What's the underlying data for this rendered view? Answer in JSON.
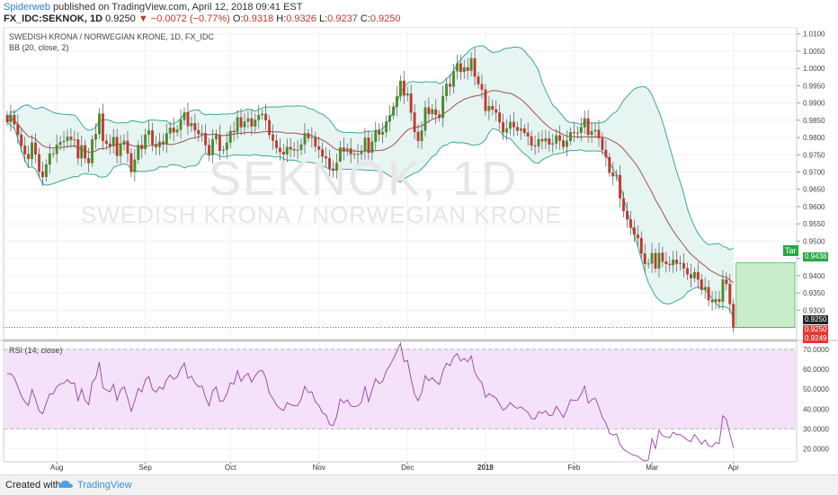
{
  "header": {
    "author": "Spiderweb",
    "published": "published on TradingView.com, April 12, 2018 09:41 EST",
    "symbol": "FX_IDC:SEKNOK, 1D",
    "last": "0.9250",
    "arrow": "▼",
    "change": "−0.0072 (−0.77%)",
    "o_label": "O:",
    "o": "0.9318",
    "h_label": "H:",
    "h": "0.9326",
    "l_label": "L:",
    "l": "0.9237",
    "c_label": "C:",
    "c": "0.9250"
  },
  "panes": {
    "main_title": "SWEDISH KRONA / NORWEGIAN KRONE, 1D, FX_IDC",
    "bb_title": "BB (20, close, 2)",
    "rsi_title": "RSI (14, close)"
  },
  "watermark": {
    "symbol": "SEKNOK, 1D",
    "name": "SWEDISH KRONA / NORWEGIAN KRONE"
  },
  "price_tags": {
    "target_label": "Tar",
    "target": "0.9438",
    "last_price": "0.9250",
    "bid": "0.9250",
    "ask": "0.9249"
  },
  "footer": {
    "created_with": "Created with",
    "brand": "TradingView"
  },
  "colors": {
    "up": "#4a8a2a",
    "down": "#c0392b",
    "bb_band": "#3aa89a",
    "bb_fill": "#e4f4f1",
    "bb_mid": "#a05050",
    "rsi_line": "#9b3fa0",
    "rsi_fill": "#f3e2fa",
    "target_green": "#27a844",
    "price_red": "#e53935"
  },
  "chart_data": [
    {
      "type": "candlestick",
      "title": "SWEDISH KRONA / NORWEGIAN KRONE, 1D, FX_IDC",
      "ylim": [
        0.9215,
        1.012
      ],
      "y_ticks": [
        "1.0100",
        "1.0050",
        "1.0000",
        "0.9950",
        "0.9900",
        "0.9850",
        "0.9800",
        "0.9750",
        "0.9700",
        "0.9650",
        "0.9600",
        "0.9550",
        "0.9500",
        "0.9450",
        "0.9400",
        "0.9350",
        "0.9300"
      ],
      "x_ticks": [
        "Aug",
        "Sep",
        "Oct",
        "Nov",
        "Dec",
        "2018",
        "Feb",
        "Mar",
        "Apr"
      ],
      "x_tick_index": [
        14,
        39,
        63,
        88,
        113,
        135,
        160,
        182,
        205
      ],
      "closes": [
        0.9845,
        0.9865,
        0.9838,
        0.9808,
        0.9776,
        0.9752,
        0.9738,
        0.9785,
        0.9751,
        0.9701,
        0.9686,
        0.9722,
        0.9753,
        0.9753,
        0.9779,
        0.9787,
        0.979,
        0.9802,
        0.9793,
        0.9794,
        0.974,
        0.9777,
        0.974,
        0.9726,
        0.9794,
        0.981,
        0.9869,
        0.979,
        0.9782,
        0.9775,
        0.9801,
        0.9747,
        0.978,
        0.979,
        0.9754,
        0.97,
        0.9736,
        0.9778,
        0.9767,
        0.9808,
        0.982,
        0.978,
        0.9772,
        0.9788,
        0.9781,
        0.9812,
        0.9828,
        0.9815,
        0.9823,
        0.9851,
        0.9872,
        0.9833,
        0.9841,
        0.9821,
        0.981,
        0.9812,
        0.9778,
        0.975,
        0.9795,
        0.9807,
        0.9762,
        0.9764,
        0.9785,
        0.9819,
        0.9815,
        0.9858,
        0.983,
        0.9846,
        0.9855,
        0.9832,
        0.9851,
        0.9865,
        0.9868,
        0.985,
        0.9808,
        0.9791,
        0.977,
        0.9758,
        0.9751,
        0.9772,
        0.9766,
        0.9763,
        0.9764,
        0.978,
        0.9812,
        0.9798,
        0.98,
        0.9774,
        0.9765,
        0.9745,
        0.974,
        0.971,
        0.9705,
        0.9726,
        0.9771,
        0.976,
        0.9768,
        0.9752,
        0.975,
        0.9752,
        0.976,
        0.9799,
        0.9756,
        0.9788,
        0.982,
        0.9809,
        0.9816,
        0.9846,
        0.9864,
        0.9889,
        0.9919,
        0.9964,
        0.9922,
        0.9927,
        0.9872,
        0.9816,
        0.979,
        0.982,
        0.9887,
        0.9868,
        0.9881,
        0.9866,
        0.9857,
        0.992,
        0.9955,
        0.9947,
        0.9992,
        1.0014,
        0.999,
        1.0003,
        0.9993,
        1.0029,
        0.9976,
        0.9954,
        0.9939,
        0.9877,
        0.9891,
        0.9881,
        0.9872,
        0.9844,
        0.9815,
        0.9826,
        0.9845,
        0.983,
        0.982,
        0.9826,
        0.9814,
        0.9803,
        0.9777,
        0.9775,
        0.9795,
        0.9789,
        0.9797,
        0.978,
        0.9783,
        0.9806,
        0.9791,
        0.9773,
        0.979,
        0.9815,
        0.9813,
        0.9814,
        0.983,
        0.9855,
        0.9808,
        0.9818,
        0.9822,
        0.9798,
        0.9764,
        0.9743,
        0.9698,
        0.9688,
        0.9691,
        0.9624,
        0.9587,
        0.9563,
        0.9539,
        0.9519,
        0.9509,
        0.9464,
        0.9434,
        0.9435,
        0.9465,
        0.9421,
        0.9466,
        0.9441,
        0.9434,
        0.9431,
        0.9446,
        0.9435,
        0.9436,
        0.9421,
        0.9404,
        0.9393,
        0.941,
        0.9389,
        0.9359,
        0.9367,
        0.9329,
        0.9324,
        0.9332,
        0.9325,
        0.9389,
        0.9376,
        0.9318,
        0.925
      ]
    },
    {
      "type": "line",
      "title": "RSI (14, close)",
      "ylim": [
        13.5,
        74
      ],
      "y_ticks": [
        "70.0000",
        "60.0000",
        "50.0000",
        "40.0000",
        "30.0000",
        "20.0000"
      ],
      "band": [
        30,
        70
      ],
      "values": [
        57.6,
        57.8,
        55.8,
        51.2,
        46.6,
        43.6,
        41.8,
        49.8,
        44.9,
        39.0,
        37.6,
        42.9,
        47.6,
        47.6,
        51.3,
        52.6,
        53.0,
        54.8,
        52.9,
        53.1,
        44.0,
        50.1,
        44.3,
        42.3,
        53.4,
        55.6,
        63.6,
        50.7,
        49.6,
        48.6,
        52.5,
        44.3,
        49.6,
        51.2,
        45.6,
        38.8,
        44.1,
        50.4,
        48.6,
        54.7,
        56.3,
        49.8,
        48.5,
        51.1,
        49.9,
        54.8,
        57.1,
        54.9,
        56.2,
        60.3,
        63.1,
        55.4,
        56.6,
        53.1,
        51.2,
        51.6,
        45.7,
        41.6,
        49.1,
        51.1,
        43.9,
        44.1,
        47.6,
        53.2,
        52.5,
        59.2,
        53.9,
        56.5,
        57.9,
        53.5,
        56.7,
        58.9,
        59.4,
        55.7,
        48.0,
        45.3,
        42.0,
        40.3,
        39.2,
        43.2,
        42.2,
        41.6,
        41.8,
        45.0,
        51.4,
        48.3,
        48.7,
        43.6,
        41.8,
        38.0,
        37.1,
        32.3,
        31.6,
        36.3,
        45.0,
        43.1,
        44.6,
        41.6,
        41.2,
        41.6,
        43.4,
        51.4,
        43.7,
        49.6,
        55.2,
        52.7,
        54.0,
        59.1,
        61.8,
        65.3,
        68.9,
        73.1,
        63.8,
        64.4,
        55.2,
        47.3,
        44.2,
        48.2,
        56.8,
        54.2,
        55.7,
        53.6,
        52.4,
        59.1,
        63.0,
        61.8,
        66.1,
        67.9,
        64.2,
        65.4,
        63.7,
        66.7,
        58.4,
        55.2,
        53.3,
        45.9,
        47.7,
        46.6,
        45.5,
        42.4,
        39.4,
        40.8,
        43.2,
        41.5,
        40.3,
        41.1,
        39.6,
        38.3,
        35.2,
        35.0,
        38.7,
        37.8,
        39.1,
        36.6,
        37.1,
        41.4,
        38.7,
        35.8,
        39.7,
        44.7,
        44.3,
        44.5,
        47.4,
        51.5,
        42.9,
        44.7,
        45.5,
        41.1,
        35.8,
        33.0,
        27.8,
        26.9,
        27.5,
        22.1,
        19.8,
        18.6,
        17.5,
        16.7,
        16.3,
        14.8,
        13.9,
        14.5,
        25.1,
        20.2,
        29.3,
        26.6,
        25.9,
        25.6,
        28.4,
        27.1,
        27.2,
        25.9,
        24.4,
        23.6,
        27.2,
        24.9,
        22.3,
        24.5,
        21.4,
        21.0,
        23.2,
        22.7,
        36.6,
        34.9,
        27.3,
        20.5
      ]
    }
  ]
}
